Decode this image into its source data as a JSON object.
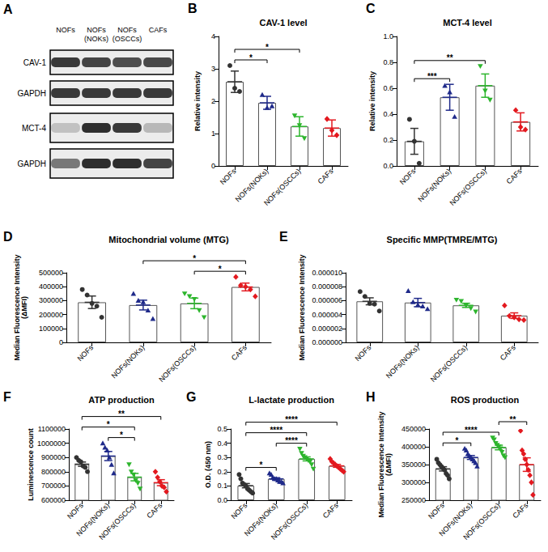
{
  "blot": {
    "panel": "A",
    "lanes": [
      "NOFs",
      "NOFs\n(NOKs)",
      "NOFs\n(OSCCs)",
      "CAFs"
    ],
    "rows": [
      {
        "name": "CAV-1",
        "bands": [
          0.85,
          0.8,
          0.75,
          0.78
        ]
      },
      {
        "name": "GAPDH",
        "bands": [
          0.85,
          0.85,
          0.85,
          0.85
        ]
      },
      {
        "name": "MCT-4",
        "bands": [
          0.2,
          0.9,
          0.85,
          0.25
        ]
      },
      {
        "name": "GAPDH",
        "bands": [
          0.55,
          0.9,
          0.9,
          0.8
        ]
      }
    ]
  },
  "chart_data": [
    {
      "panel": "B",
      "type": "bar",
      "title": "CAV-1 level",
      "y_label": "Relative intensity",
      "categories": [
        "NOFs",
        "NOFs(NOKs)",
        "NOFs(OSCCs)",
        "CAFs"
      ],
      "values": [
        2.6,
        1.95,
        1.22,
        1.17
      ],
      "errors": [
        0.33,
        0.2,
        0.3,
        0.25
      ],
      "points": [
        [
          3.1,
          2.4,
          2.3
        ],
        [
          2.2,
          1.8,
          1.85
        ],
        [
          1.55,
          1.25,
          0.85
        ],
        [
          1.45,
          1.1,
          0.95
        ]
      ],
      "colors": [
        "#333333",
        "#1f2a8a",
        "#2db52d",
        "#e3191f"
      ],
      "marker": [
        "circle",
        "triangle",
        "triangle_down",
        "diamond"
      ],
      "ylim": [
        0,
        4
      ],
      "yticks": [
        0,
        1,
        2,
        3,
        4
      ],
      "significance": [
        {
          "between": [
            "NOFs",
            "NOFs(NOKs)"
          ],
          "label": "*"
        },
        {
          "between": [
            "NOFs",
            "NOFs(OSCCs)"
          ],
          "label": "*"
        }
      ]
    },
    {
      "panel": "C",
      "type": "bar",
      "title": "MCT-4 level",
      "y_label": "Relative intensity",
      "categories": [
        "NOFs",
        "NOFs(NOKs)",
        "NOFs(OSCCs)",
        "CAFs"
      ],
      "values": [
        0.19,
        0.53,
        0.62,
        0.34
      ],
      "errors": [
        0.1,
        0.1,
        0.09,
        0.07
      ],
      "points": [
        [
          0.36,
          0.19,
          0.02
        ],
        [
          0.62,
          0.57,
          0.38
        ],
        [
          0.77,
          0.58,
          0.51
        ],
        [
          0.43,
          0.3,
          0.28
        ]
      ],
      "colors": [
        "#333333",
        "#1f2a8a",
        "#2db52d",
        "#e3191f"
      ],
      "marker": [
        "circle",
        "triangle",
        "triangle_down",
        "diamond"
      ],
      "ylim": [
        0,
        1
      ],
      "yticks": [
        {
          "value": 0,
          "label": "0.0"
        },
        {
          "value": 0.2,
          "label": "0.2"
        },
        {
          "value": 0.4,
          "label": "0.4"
        },
        {
          "value": 0.6,
          "label": "0.6"
        },
        {
          "value": 0.8,
          "label": "0.8"
        },
        {
          "value": 1,
          "label": "1.0"
        }
      ],
      "significance": [
        {
          "between": [
            "NOFs",
            "NOFs(NOKs)"
          ],
          "label": "***"
        },
        {
          "between": [
            "NOFs",
            "NOFs(OSCCs)"
          ],
          "label": "**"
        }
      ]
    },
    {
      "panel": "D",
      "type": "bar",
      "title": "Mitochondrial volume (MTG)",
      "y_label": "Median Fluorescence Intensity\n(ΔMFI)",
      "categories": [
        "NOFs",
        "NOFs(NOKs)",
        "NOFs(OSCCs)",
        "CAFs"
      ],
      "values": [
        288000,
        268000,
        280000,
        398000
      ],
      "errors": [
        45000,
        35000,
        38000,
        28000
      ],
      "points": [
        [
          380000,
          340000,
          280000,
          260000,
          180000
        ],
        [
          350000,
          300000,
          290000,
          230000,
          170000
        ],
        [
          350000,
          330000,
          310000,
          230000,
          180000
        ],
        [
          470000,
          410000,
          400000,
          380000,
          330000
        ]
      ],
      "colors": [
        "#333333",
        "#1f2a8a",
        "#2db52d",
        "#e3191f"
      ],
      "marker": [
        "circle",
        "triangle",
        "triangle_down",
        "diamond"
      ],
      "ylim": [
        0,
        500000
      ],
      "yticks": [
        0,
        100000,
        200000,
        300000,
        400000,
        500000
      ],
      "significance": [
        {
          "between": [
            "NOFs(OSCCs)",
            "CAFs"
          ],
          "label": "*"
        },
        {
          "between": [
            "NOFs(NOKs)",
            "CAFs"
          ],
          "label": "*"
        }
      ]
    },
    {
      "panel": "E",
      "type": "bar",
      "title": "Specific MMP(TMRE/MTG)",
      "y_label": "Median Fluorescence Intensity",
      "categories": [
        "NOFs",
        "NOFs(NOKs)",
        "NOFs(OSCCs)",
        "CAFs"
      ],
      "values": [
        5.9e-06,
        5.72e-06,
        5.32e-06,
        3.84e-06
      ],
      "errors": [
        5e-07,
        6e-07,
        3e-07,
        4e-07
      ],
      "points": [
        [
          7.3e-06,
          6.6e-06,
          5.6e-06,
          5.5e-06,
          4.5e-06
        ],
        [
          7.4e-06,
          5.8e-06,
          5.4e-06,
          5.2e-06,
          4.8e-06
        ],
        [
          6.1e-06,
          5.9e-06,
          5.3e-06,
          4.9e-06,
          4.4e-06
        ],
        [
          5.3e-06,
          3.8e-06,
          3.6e-06,
          3.3e-06,
          3.2e-06
        ]
      ],
      "colors": [
        "#333333",
        "#1f2a8a",
        "#2db52d",
        "#e3191f"
      ],
      "marker": [
        "circle",
        "triangle",
        "triangle_down",
        "diamond"
      ],
      "ylim": [
        0,
        1e-05
      ],
      "yticks": [
        {
          "value": 0,
          "label": "0.000000"
        },
        {
          "value": 2e-06,
          "label": "0.000002"
        },
        {
          "value": 4e-06,
          "label": "0.000004"
        },
        {
          "value": 6e-06,
          "label": "0.000006"
        },
        {
          "value": 8e-06,
          "label": "0.000008"
        },
        {
          "value": 1e-05,
          "label": "0.000010"
        }
      ],
      "significance": []
    },
    {
      "panel": "F",
      "type": "bar",
      "title": "ATP production",
      "y_label": "Luminescence count",
      "categories": [
        "NOFs",
        "NOFs(NOKs)",
        "NOFs(OSCCs)",
        "CAFs"
      ],
      "values": [
        853000,
        910000,
        762000,
        723000
      ],
      "errors": [
        15000,
        32000,
        26000,
        21000
      ],
      "points": [
        [
          900000,
          880000,
          870000,
          840000,
          830000,
          800000
        ],
        [
          1000000,
          970000,
          950000,
          900000,
          850000,
          790000
        ],
        [
          850000,
          800000,
          780000,
          740000,
          720000,
          680000
        ],
        [
          800000,
          760000,
          730000,
          700000,
          690000,
          660000
        ]
      ],
      "colors": [
        "#333333",
        "#1f2a8a",
        "#2db52d",
        "#e3191f"
      ],
      "marker": [
        "circle",
        "triangle",
        "triangle_down",
        "diamond"
      ],
      "ylim": [
        600000,
        1100000
      ],
      "yticks": [
        600000,
        700000,
        800000,
        900000,
        1000000,
        1100000
      ],
      "significance": [
        {
          "between": [
            "NOFs(NOKs)",
            "NOFs(OSCCs)"
          ],
          "label": "*"
        },
        {
          "between": [
            "NOFs",
            "NOFs(OSCCs)"
          ],
          "label": "*"
        },
        {
          "between": [
            "NOFs",
            "CAFs"
          ],
          "label": "**"
        }
      ]
    },
    {
      "panel": "G",
      "type": "bar",
      "title": "L-lactate production",
      "y_label": "O.D. (450 nm)",
      "categories": [
        "NOFs",
        "NOFs(NOKs)",
        "NOFs(OSCCs)",
        "CAFs"
      ],
      "values": [
        0.102,
        0.15,
        0.29,
        0.241
      ],
      "errors": [
        0.015,
        0.008,
        0.014,
        0.01
      ],
      "points": [
        [
          0.18,
          0.15,
          0.12,
          0.11,
          0.1,
          0.08,
          0.07,
          0.06,
          0.05
        ],
        [
          0.19,
          0.18,
          0.16,
          0.15,
          0.15,
          0.14,
          0.13,
          0.13,
          0.12
        ],
        [
          0.36,
          0.33,
          0.31,
          0.3,
          0.29,
          0.28,
          0.27,
          0.25,
          0.22
        ],
        [
          0.29,
          0.27,
          0.26,
          0.25,
          0.24,
          0.23,
          0.22,
          0.21,
          0.2
        ]
      ],
      "colors": [
        "#333333",
        "#1f2a8a",
        "#2db52d",
        "#e3191f"
      ],
      "marker": [
        "circle",
        "triangle",
        "triangle_down",
        "diamond"
      ],
      "ylim": [
        0,
        0.5
      ],
      "yticks": [
        {
          "value": 0,
          "label": "0.0"
        },
        {
          "value": 0.1,
          "label": "0.1"
        },
        {
          "value": 0.2,
          "label": "0.2"
        },
        {
          "value": 0.3,
          "label": "0.3"
        },
        {
          "value": 0.4,
          "label": "0.4"
        },
        {
          "value": 0.5,
          "label": "0.5"
        }
      ],
      "significance": [
        {
          "between": [
            "NOFs",
            "NOFs(NOKs)"
          ],
          "label": "*"
        },
        {
          "between": [
            "NOFs(NOKs)",
            "NOFs(OSCCs)"
          ],
          "label": "****"
        },
        {
          "between": [
            "NOFs",
            "NOFs(OSCCs)"
          ],
          "label": "****"
        },
        {
          "between": [
            "NOFs",
            "CAFs"
          ],
          "label": "****"
        }
      ]
    },
    {
      "panel": "H",
      "type": "bar",
      "title": "ROS production",
      "y_label": "Median Fluorescence Intensity\n(ΔMFI)",
      "categories": [
        "NOFs",
        "NOFs(NOKs)",
        "NOFs(OSCCs)",
        "CAFs"
      ],
      "values": [
        338000,
        370000,
        398000,
        350000
      ],
      "errors": [
        6000,
        5500,
        6500,
        19000
      ],
      "points": [
        [
          365000,
          355000,
          350000,
          345000,
          340000,
          335000,
          325000,
          320000,
          310000
        ],
        [
          395000,
          390000,
          380000,
          375000,
          370000,
          365000,
          360000,
          355000,
          345000
        ],
        [
          425000,
          420000,
          410000,
          405000,
          400000,
          395000,
          385000,
          375000,
          370000
        ],
        [
          445000,
          390000,
          380000,
          365000,
          350000,
          335000,
          320000,
          300000,
          265000
        ]
      ],
      "colors": [
        "#333333",
        "#1f2a8a",
        "#2db52d",
        "#e3191f"
      ],
      "marker": [
        "circle",
        "triangle",
        "triangle_down",
        "diamond"
      ],
      "ylim": [
        250000,
        450000
      ],
      "yticks": [
        250000,
        300000,
        350000,
        400000,
        450000
      ],
      "significance": [
        {
          "between": [
            "NOFs",
            "NOFs(NOKs)"
          ],
          "label": "*"
        },
        {
          "between": [
            "NOFs",
            "NOFs(OSCCs)"
          ],
          "label": "****"
        },
        {
          "between": [
            "NOFs(OSCCs)",
            "CAFs"
          ],
          "label": "**"
        }
      ]
    }
  ]
}
